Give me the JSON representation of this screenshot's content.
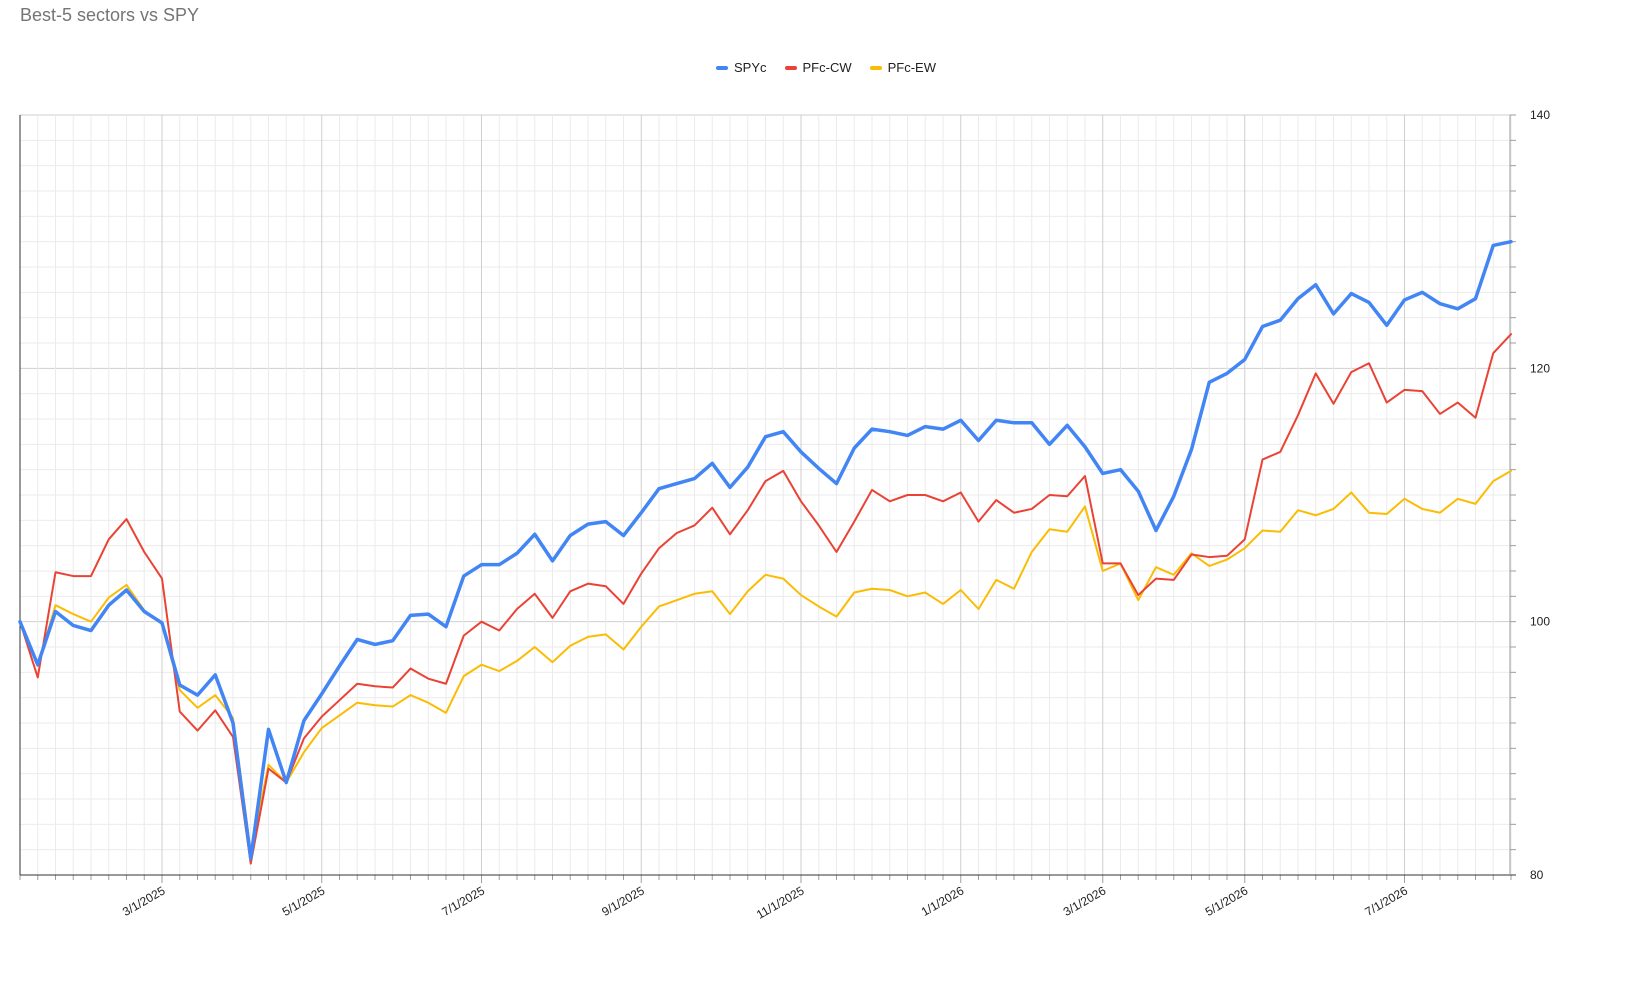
{
  "chart_data": {
    "type": "line",
    "title": "Best-5 sectors vs SPY",
    "xlabel": "",
    "ylabel": "",
    "ylim": [
      80,
      140
    ],
    "yticks": [
      "80",
      "100",
      "120",
      "140"
    ],
    "xticks": [
      "3/1/2025",
      "5/1/2025",
      "7/1/2025",
      "9/1/2025",
      "11/1/2025",
      "1/1/2026",
      "3/1/2026",
      "5/1/2026",
      "7/1/2026"
    ],
    "y_axis_position": "right",
    "legend_position": "top",
    "grid": true,
    "n_points": 85,
    "series": [
      {
        "name": "SPYc",
        "color": "#4285f4",
        "values": [
          100.0,
          96.6,
          100.8,
          99.7,
          99.3,
          101.3,
          102.5,
          100.8,
          99.9,
          95.0,
          94.2,
          95.8,
          92.0,
          81.3,
          91.5,
          87.3,
          92.2,
          94.3,
          96.5,
          98.6,
          98.2,
          98.5,
          100.5,
          100.6,
          99.6,
          103.6,
          104.5,
          104.5,
          105.4,
          106.9,
          104.8,
          106.8,
          107.7,
          107.9,
          106.8,
          108.6,
          110.5,
          110.9,
          111.3,
          112.5,
          110.6,
          112.2,
          114.6,
          115.0,
          113.4,
          112.1,
          110.9,
          113.7,
          115.2,
          115.0,
          114.7,
          115.4,
          115.2,
          115.9,
          114.3,
          115.9,
          115.7,
          115.7,
          114.0,
          115.5,
          113.8,
          111.7,
          112.0,
          110.3,
          107.2,
          109.9,
          113.6,
          118.9,
          119.6,
          120.7,
          123.3,
          123.8,
          125.5,
          126.6,
          124.3,
          125.9,
          125.2,
          123.4,
          125.4,
          126.0,
          125.1,
          124.7,
          125.5,
          129.7,
          130.0
        ]
      },
      {
        "name": "PFc-CW",
        "color": "#ea4335",
        "values": [
          100.0,
          95.6,
          103.9,
          103.6,
          103.6,
          106.5,
          108.1,
          105.5,
          103.4,
          92.9,
          91.4,
          93.0,
          90.9,
          80.9,
          88.4,
          87.3,
          90.8,
          92.5,
          93.8,
          95.1,
          94.9,
          94.8,
          96.3,
          95.5,
          95.1,
          98.9,
          100.0,
          99.3,
          101.0,
          102.2,
          100.3,
          102.4,
          103.0,
          102.8,
          101.4,
          103.8,
          105.8,
          107.0,
          107.6,
          109.0,
          106.9,
          108.8,
          111.1,
          111.9,
          109.5,
          107.6,
          105.5,
          107.9,
          110.4,
          109.5,
          110.0,
          110.0,
          109.5,
          110.2,
          107.9,
          109.6,
          108.6,
          108.9,
          110.0,
          109.9,
          111.5,
          104.6,
          104.6,
          102.1,
          103.4,
          103.3,
          105.3,
          105.1,
          105.2,
          106.5,
          112.8,
          113.4,
          116.3,
          119.6,
          117.2,
          119.7,
          120.4,
          117.3,
          118.3,
          118.2,
          116.4,
          117.3,
          116.1,
          121.2,
          122.7
        ]
      },
      {
        "name": "PFc-EW",
        "color": "#fbbc04",
        "values": [
          100.0,
          96.5,
          101.3,
          100.6,
          100.0,
          101.9,
          102.9,
          100.9,
          99.8,
          94.6,
          93.2,
          94.2,
          92.4,
          81.8,
          88.7,
          87.3,
          89.7,
          91.6,
          92.6,
          93.6,
          93.4,
          93.3,
          94.2,
          93.6,
          92.8,
          95.7,
          96.6,
          96.1,
          96.9,
          98.0,
          96.8,
          98.1,
          98.8,
          99.0,
          97.8,
          99.6,
          101.2,
          101.7,
          102.2,
          102.4,
          100.6,
          102.4,
          103.7,
          103.4,
          102.1,
          101.2,
          100.4,
          102.3,
          102.6,
          102.5,
          102.0,
          102.3,
          101.4,
          102.5,
          101.0,
          103.3,
          102.6,
          105.5,
          107.3,
          107.1,
          109.1,
          104.0,
          104.6,
          101.7,
          104.3,
          103.7,
          105.4,
          104.4,
          104.9,
          105.8,
          107.2,
          107.1,
          108.8,
          108.4,
          108.9,
          110.2,
          108.6,
          108.5,
          109.7,
          108.9,
          108.6,
          109.7,
          109.3,
          111.1,
          111.9
        ]
      }
    ]
  }
}
